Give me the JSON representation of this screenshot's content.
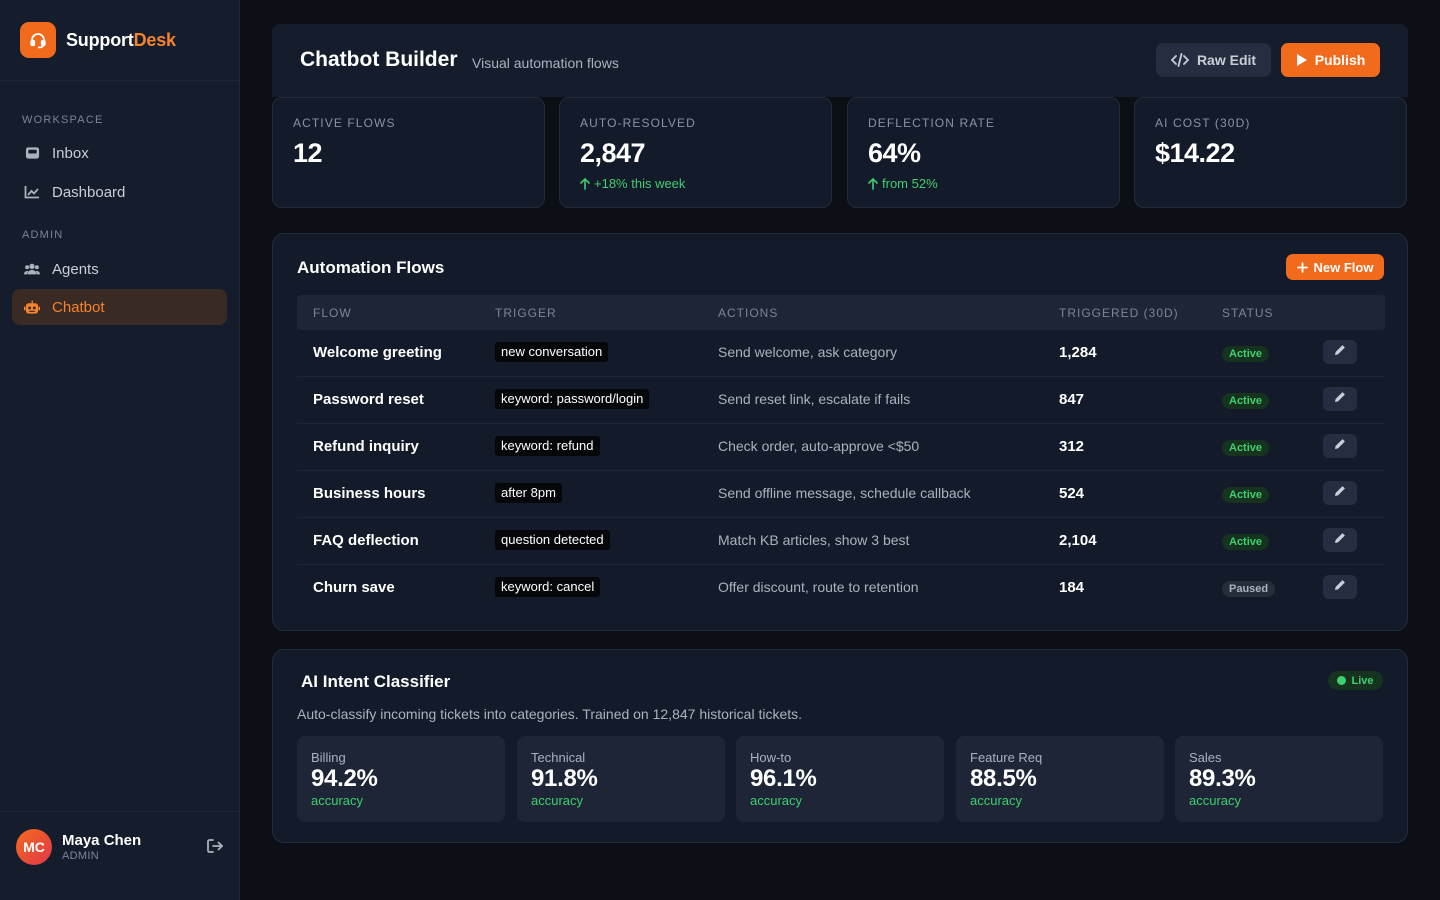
{
  "brand": {
    "name_main": "Support",
    "name_accent": "Desk",
    "logo_icon": "headset-icon",
    "color": "#f26b1d"
  },
  "sidebar": {
    "sections": [
      {
        "title": "WORKSPACE",
        "items": [
          {
            "label": "Inbox",
            "icon": "inbox-icon"
          },
          {
            "label": "Dashboard",
            "icon": "chart-line-icon"
          }
        ]
      },
      {
        "title": "ADMIN",
        "items": [
          {
            "label": "Agents",
            "icon": "users-icon"
          },
          {
            "label": "Chatbot",
            "icon": "robot-icon",
            "active": true
          }
        ]
      }
    ],
    "user": {
      "initials": "MC",
      "name": "Maya Chen",
      "role": "ADMIN"
    }
  },
  "header": {
    "title": "Chatbot Builder",
    "subtitle": "Visual automation flows",
    "raw_edit_label": "Raw Edit",
    "publish_label": "Publish"
  },
  "stats": [
    {
      "label": "ACTIVE FLOWS",
      "value": "12",
      "delta": ""
    },
    {
      "label": "AUTO-RESOLVED",
      "value": "2,847",
      "delta": "+18% this week"
    },
    {
      "label": "DEFLECTION RATE",
      "value": "64%",
      "delta": "from 52%"
    },
    {
      "label": "AI COST (30D)",
      "value": "$14.22",
      "delta": ""
    }
  ],
  "flows": {
    "title": "Automation Flows",
    "new_label": "New Flow",
    "columns": [
      "FLOW",
      "TRIGGER",
      "ACTIONS",
      "TRIGGERED (30D)",
      "STATUS"
    ],
    "rows": [
      {
        "name": "Welcome greeting",
        "trigger": "new conversation",
        "actions": "Send welcome, ask category",
        "count": "1,284",
        "status": "Active"
      },
      {
        "name": "Password reset",
        "trigger": "keyword: password/login",
        "actions": "Send reset link, escalate if fails",
        "count": "847",
        "status": "Active"
      },
      {
        "name": "Refund inquiry",
        "trigger": "keyword: refund",
        "actions": "Check order, auto-approve <$50",
        "count": "312",
        "status": "Active"
      },
      {
        "name": "Business hours",
        "trigger": "after 8pm",
        "actions": "Send offline message, schedule callback",
        "count": "524",
        "status": "Active"
      },
      {
        "name": "FAQ deflection",
        "trigger": "question detected",
        "actions": "Match KB articles, show 3 best",
        "count": "2,104",
        "status": "Active"
      },
      {
        "name": "Churn save",
        "trigger": "keyword: cancel",
        "actions": "Offer discount, route to retention",
        "count": "184",
        "status": "Paused"
      }
    ]
  },
  "classifier": {
    "title": "AI Intent Classifier",
    "live_label": "Live",
    "description": "Auto-classify incoming tickets into categories. Trained on 12,847 historical tickets.",
    "categories": [
      {
        "name": "Billing",
        "value": "94.2%",
        "sub": "accuracy"
      },
      {
        "name": "Technical",
        "value": "91.8%",
        "sub": "accuracy"
      },
      {
        "name": "How-to",
        "value": "96.1%",
        "sub": "accuracy"
      },
      {
        "name": "Feature Req",
        "value": "88.5%",
        "sub": "accuracy"
      },
      {
        "name": "Sales",
        "value": "89.3%",
        "sub": "accuracy"
      }
    ]
  }
}
